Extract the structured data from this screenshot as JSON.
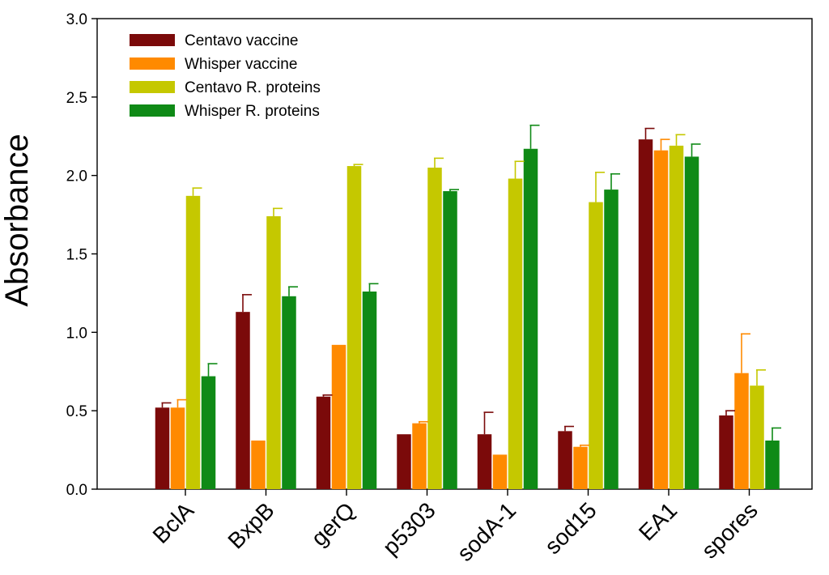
{
  "chart_data": {
    "type": "bar",
    "title": "",
    "xlabel": "",
    "ylabel": "Absorbance",
    "ylim": [
      0,
      3.0
    ],
    "yticks": [
      0.0,
      0.5,
      1.0,
      1.5,
      2.0,
      2.5,
      3.0
    ],
    "ytick_labels": [
      "0.0",
      "0.5",
      "1.0",
      "1.5",
      "2.0",
      "2.5",
      "3.0"
    ],
    "grid": false,
    "legend_position": "top-left",
    "categories": [
      "BclA",
      "BxpB",
      "gerQ",
      "p5303",
      "sodA-1",
      "sod15",
      "EA1",
      "spores"
    ],
    "series": [
      {
        "name": "Centavo vaccine",
        "color": "#7b0a0a",
        "values": [
          0.52,
          1.13,
          0.59,
          0.35,
          0.35,
          0.37,
          2.23,
          0.47
        ],
        "errors": [
          0.03,
          0.11,
          0.01,
          0.0,
          0.14,
          0.03,
          0.07,
          0.03
        ]
      },
      {
        "name": "Whisper vaccine",
        "color": "#ff8a00",
        "values": [
          0.52,
          0.31,
          0.92,
          0.42,
          0.22,
          0.27,
          2.16,
          0.74
        ],
        "errors": [
          0.05,
          0.0,
          0.0,
          0.01,
          0.0,
          0.01,
          0.07,
          0.25
        ]
      },
      {
        "name": "Centavo R. proteins",
        "color": "#c5c800",
        "values": [
          1.87,
          1.74,
          2.06,
          2.05,
          1.98,
          1.83,
          2.19,
          0.66
        ],
        "errors": [
          0.05,
          0.05,
          0.01,
          0.06,
          0.11,
          0.19,
          0.07,
          0.1
        ]
      },
      {
        "name": "Whisper R. proteins",
        "color": "#0f8a16",
        "values": [
          0.72,
          1.23,
          1.26,
          1.9,
          2.17,
          1.91,
          2.12,
          0.31
        ],
        "errors": [
          0.08,
          0.06,
          0.05,
          0.01,
          0.15,
          0.1,
          0.08,
          0.08
        ]
      }
    ]
  }
}
